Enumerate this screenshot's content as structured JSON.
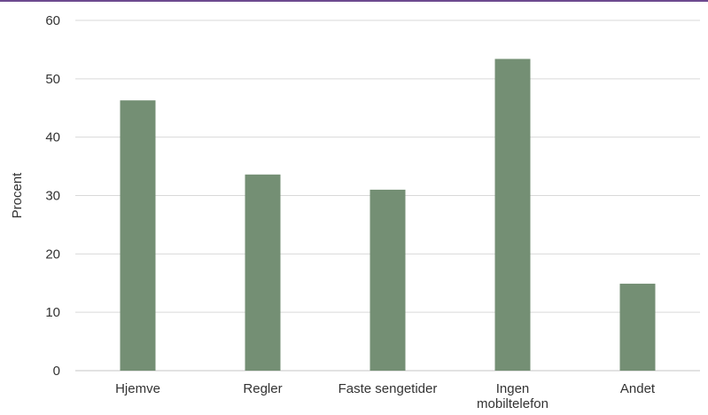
{
  "chart_data": {
    "type": "bar",
    "categories": [
      "Hjemve",
      "Regler",
      "Faste sengetider",
      "Ingen mobiltelefon",
      "Andet"
    ],
    "category_lines": [
      [
        "Hjemve"
      ],
      [
        "Regler"
      ],
      [
        "Faste sengetider"
      ],
      [
        "Ingen",
        "mobiltelefon"
      ],
      [
        "Andet"
      ]
    ],
    "values": [
      46.3,
      33.6,
      31.0,
      53.4,
      14.9
    ],
    "title": "",
    "xlabel": "",
    "ylabel": "Procent",
    "ylim": [
      0,
      60
    ],
    "yticks": [
      0,
      10,
      20,
      30,
      40,
      50,
      60
    ],
    "grid": true,
    "legend": "none",
    "bar_color": "#748f74",
    "grid_color": "#d9d9d9",
    "accent_color": "#6d4a8f"
  }
}
